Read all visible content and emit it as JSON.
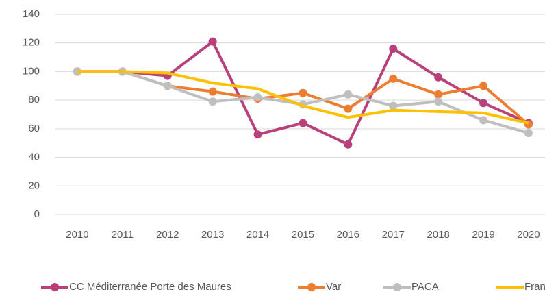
{
  "chart_data": {
    "type": "line",
    "categories": [
      "2010",
      "2011",
      "2012",
      "2013",
      "2014",
      "2015",
      "2016",
      "2017",
      "2018",
      "2019",
      "2020"
    ],
    "series": [
      {
        "name": "CC Méditerranée Porte des Maures",
        "color": "#b9407a",
        "marker": true,
        "values": [
          100,
          100,
          97,
          121,
          56,
          64,
          49,
          116,
          96,
          78,
          64
        ]
      },
      {
        "name": "Var",
        "color": "#ed7d31",
        "marker": true,
        "values": [
          100,
          100,
          90,
          86,
          81,
          85,
          74,
          95,
          84,
          90,
          63
        ]
      },
      {
        "name": "PACA",
        "color": "#bfbfbf",
        "marker": true,
        "values": [
          100,
          100,
          90,
          79,
          82,
          77,
          84,
          76,
          79,
          66,
          57
        ]
      },
      {
        "name": "France",
        "color": "#ffc000",
        "marker": false,
        "values": [
          100,
          100,
          99,
          92,
          88,
          76,
          68,
          73,
          72,
          71,
          64
        ]
      }
    ],
    "ylim": [
      0,
      140
    ],
    "yticks": [
      0,
      20,
      40,
      60,
      80,
      100,
      120,
      140
    ],
    "grid": true,
    "legend": "bottom"
  }
}
